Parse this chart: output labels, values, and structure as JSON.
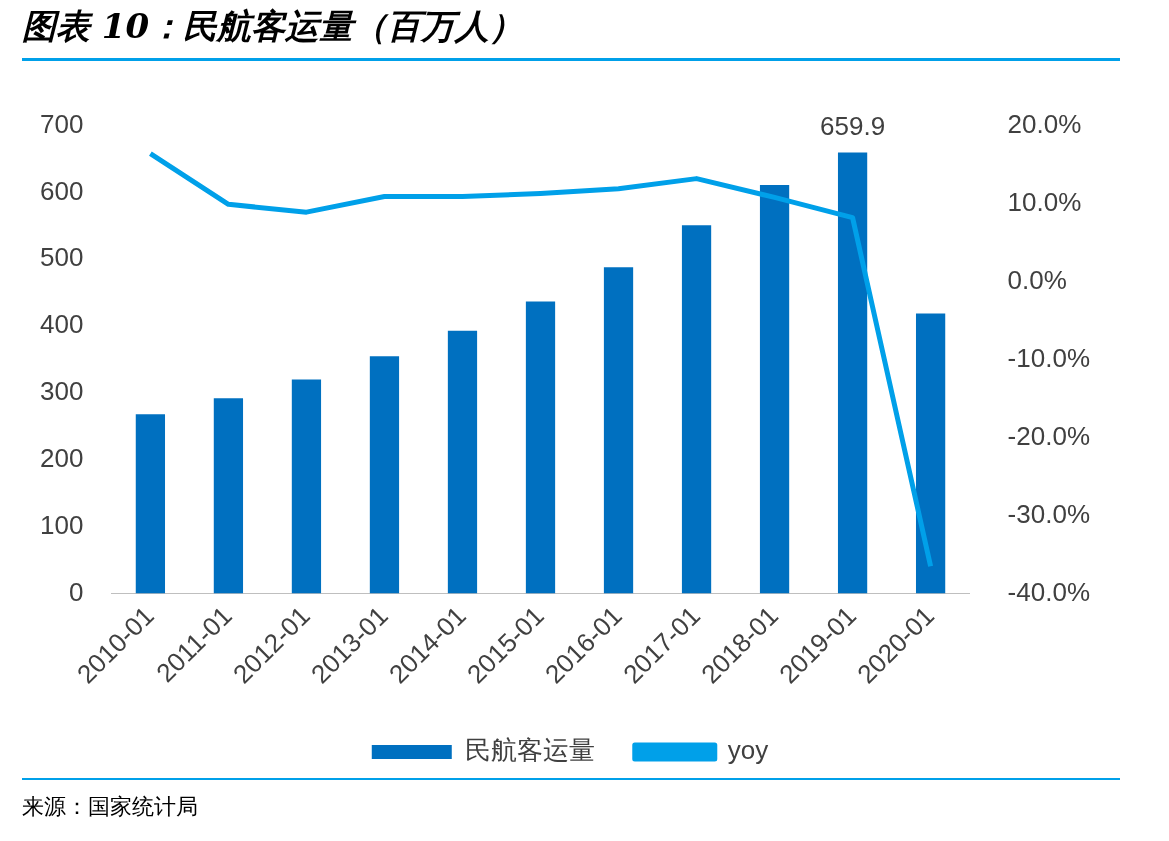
{
  "chart_data": {
    "type": "bar",
    "title": "图表 10：民航客运量（百万人）",
    "annotations": [
      "来源：国家统计局"
    ],
    "categories": [
      "2010-01",
      "2011-01",
      "2012-01",
      "2013-01",
      "2014-01",
      "2015-01",
      "2016-01",
      "2017-01",
      "2018-01",
      "2019-01",
      "2020-01"
    ],
    "series": [
      {
        "name": "民航客运量",
        "color": "#0070c0",
        "values": [
          268,
          292,
          320,
          355,
          393,
          437,
          488,
          551,
          611,
          659.9,
          419
        ],
        "value_labels": [
          null,
          null,
          null,
          null,
          null,
          null,
          null,
          null,
          null,
          "659.9",
          null
        ]
      },
      {
        "name": "yoy",
        "type": "line",
        "axis": "y2",
        "color": "#00a0e9",
        "values": [
          16.4,
          9.9,
          8.9,
          10.9,
          10.9,
          11.3,
          11.9,
          13.2,
          10.8,
          8.2,
          -36.5
        ]
      }
    ],
    "ylim": [
      0,
      700
    ],
    "yticks": [
      0,
      100,
      200,
      300,
      400,
      500,
      600,
      700
    ],
    "y2lim": [
      -40,
      20
    ],
    "y2ticks": [
      {
        "value": -40,
        "label": "-40.0%"
      },
      {
        "value": -30,
        "label": "-30.0%"
      },
      {
        "value": -20,
        "label": "-20.0%"
      },
      {
        "value": -10,
        "label": "-10.0%"
      },
      {
        "value": 0,
        "label": "0.0%"
      },
      {
        "value": 10,
        "label": "10.0%"
      },
      {
        "value": 20,
        "label": "20.0%"
      }
    ],
    "grid": false,
    "legend": "bottom",
    "marker": "none"
  }
}
